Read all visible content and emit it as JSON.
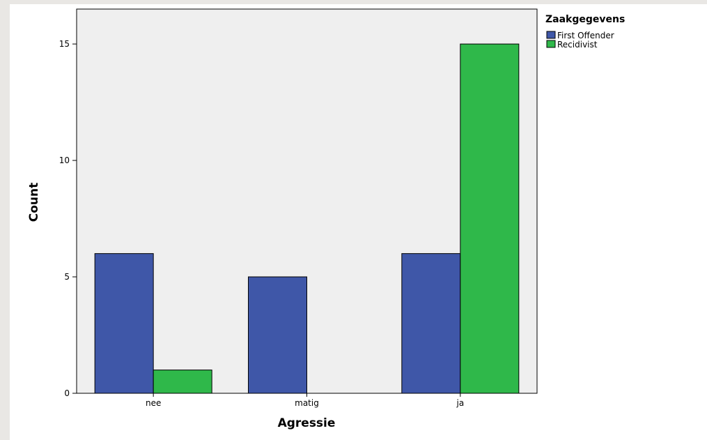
{
  "colors": {
    "series_0": "#3f57a8",
    "series_1": "#2fb84a",
    "plot_background": "#efefef",
    "page_background": "#e9e7e4"
  },
  "chart_data": {
    "type": "bar",
    "categories": [
      "nee",
      "matig",
      "ja"
    ],
    "series": [
      {
        "name": "First Offender",
        "values": [
          6,
          5,
          6
        ]
      },
      {
        "name": "Recidivist",
        "values": [
          1,
          0,
          15
        ]
      }
    ],
    "xlabel": "Agressie",
    "ylabel": "Count",
    "ylim": [
      0,
      16.5
    ],
    "yticks": [
      0,
      5,
      10,
      15
    ],
    "legend": {
      "title": "Zaakgegevens",
      "position": "right-top"
    },
    "grid": false
  }
}
